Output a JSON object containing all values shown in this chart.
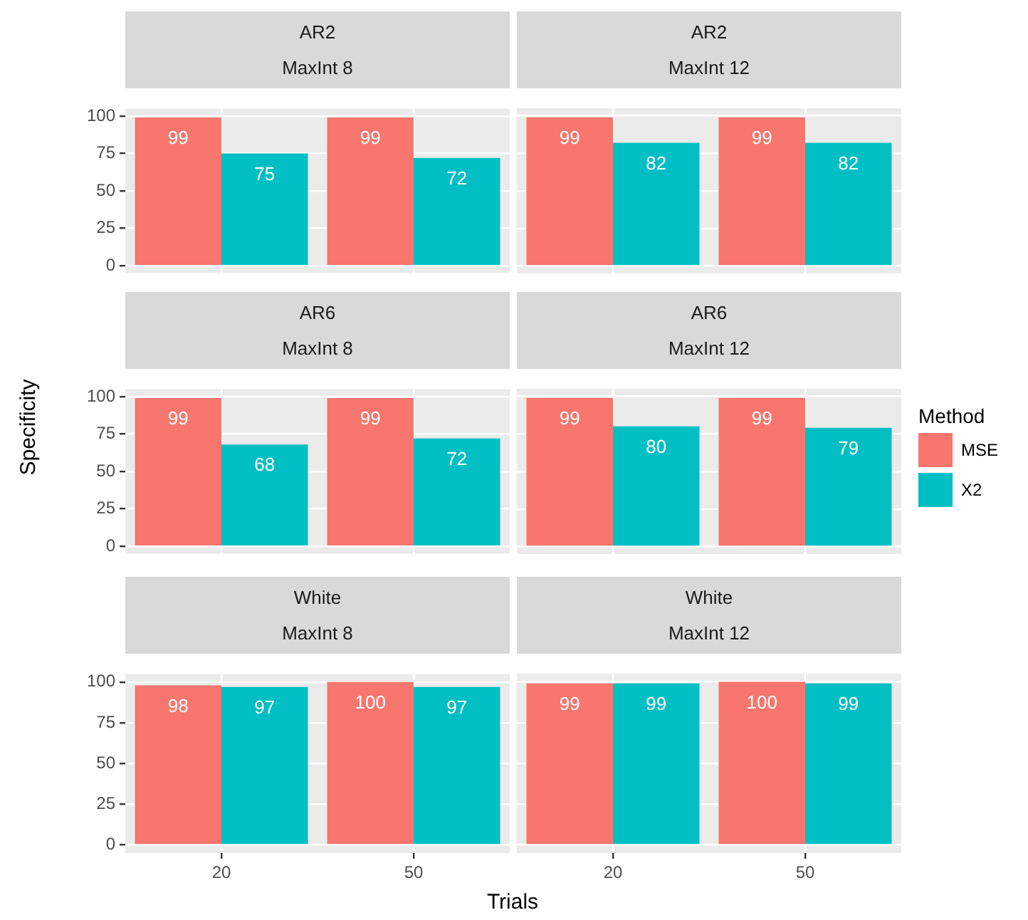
{
  "chart_data": [
    {
      "type": "bar",
      "title": "AR2",
      "subtitle": "MaxInt 8",
      "categories": [
        "20",
        "50"
      ],
      "series": [
        {
          "color": "#f8766d",
          "values": [
            99,
            99
          ]
        },
        {
          "color": "#00bfc4",
          "values": [
            75,
            72
          ]
        }
      ],
      "ylim": [
        -5,
        105
      ],
      "yticks": [
        0,
        25,
        50,
        75,
        100
      ],
      "grid": true,
      "data_labels": true,
      "tick_labels": "y"
    },
    {
      "type": "bar",
      "title": "AR2",
      "subtitle": "MaxInt 12",
      "categories": [
        "20",
        "50"
      ],
      "series": [
        {
          "color": "#f8766d",
          "values": [
            99,
            99
          ]
        },
        {
          "color": "#00bfc4",
          "values": [
            82,
            82
          ]
        }
      ],
      "ylim": [
        -5,
        105
      ],
      "yticks": [
        0,
        25,
        50,
        75,
        100
      ],
      "grid": true,
      "data_labels": true,
      "tick_labels": false
    },
    {
      "type": "bar",
      "title": "AR6",
      "subtitle": "MaxInt 8",
      "categories": [
        "20",
        "50"
      ],
      "series": [
        {
          "color": "#f8766d",
          "values": [
            99,
            99
          ]
        },
        {
          "color": "#00bfc4",
          "values": [
            68,
            72
          ]
        }
      ],
      "ylim": [
        -5,
        105
      ],
      "yticks": [
        0,
        25,
        50,
        75,
        100
      ],
      "grid": true,
      "data_labels": true,
      "tick_labels": "y",
      "ylabel": "Specificity"
    },
    {
      "type": "bar",
      "title": "AR6",
      "subtitle": "MaxInt 12",
      "categories": [
        "20",
        "50"
      ],
      "series": [
        {
          "name": "MSE",
          "color": "#f8766d",
          "values": [
            99,
            99
          ]
        },
        {
          "name": "X2",
          "color": "#00bfc4",
          "values": [
            80,
            79
          ]
        }
      ],
      "ylim": [
        -5,
        105
      ],
      "yticks": [
        0,
        25,
        50,
        75,
        100
      ],
      "grid": true,
      "data_labels": true,
      "tick_labels": false,
      "legend": "right",
      "legend_title": "Method"
    },
    {
      "type": "bar",
      "title": "White",
      "subtitle": "MaxInt 8",
      "categories": [
        "20",
        "50"
      ],
      "series": [
        {
          "color": "#f8766d",
          "values": [
            98,
            100
          ]
        },
        {
          "color": "#00bfc4",
          "values": [
            97,
            97
          ]
        }
      ],
      "ylim": [
        -5,
        105
      ],
      "yticks": [
        0,
        25,
        50,
        75,
        100
      ],
      "grid": true,
      "data_labels": true,
      "xlabel": "Trials"
    },
    {
      "type": "bar",
      "title": "White",
      "subtitle": "MaxInt 12",
      "categories": [
        "20",
        "50"
      ],
      "series": [
        {
          "color": "#f8766d",
          "values": [
            99,
            100
          ]
        },
        {
          "color": "#00bfc4",
          "values": [
            99,
            99
          ]
        }
      ],
      "ylim": [
        -5,
        105
      ],
      "yticks": [
        0,
        25,
        50,
        75,
        100
      ],
      "grid": true,
      "data_labels": true,
      "tick_labels": "x"
    }
  ]
}
